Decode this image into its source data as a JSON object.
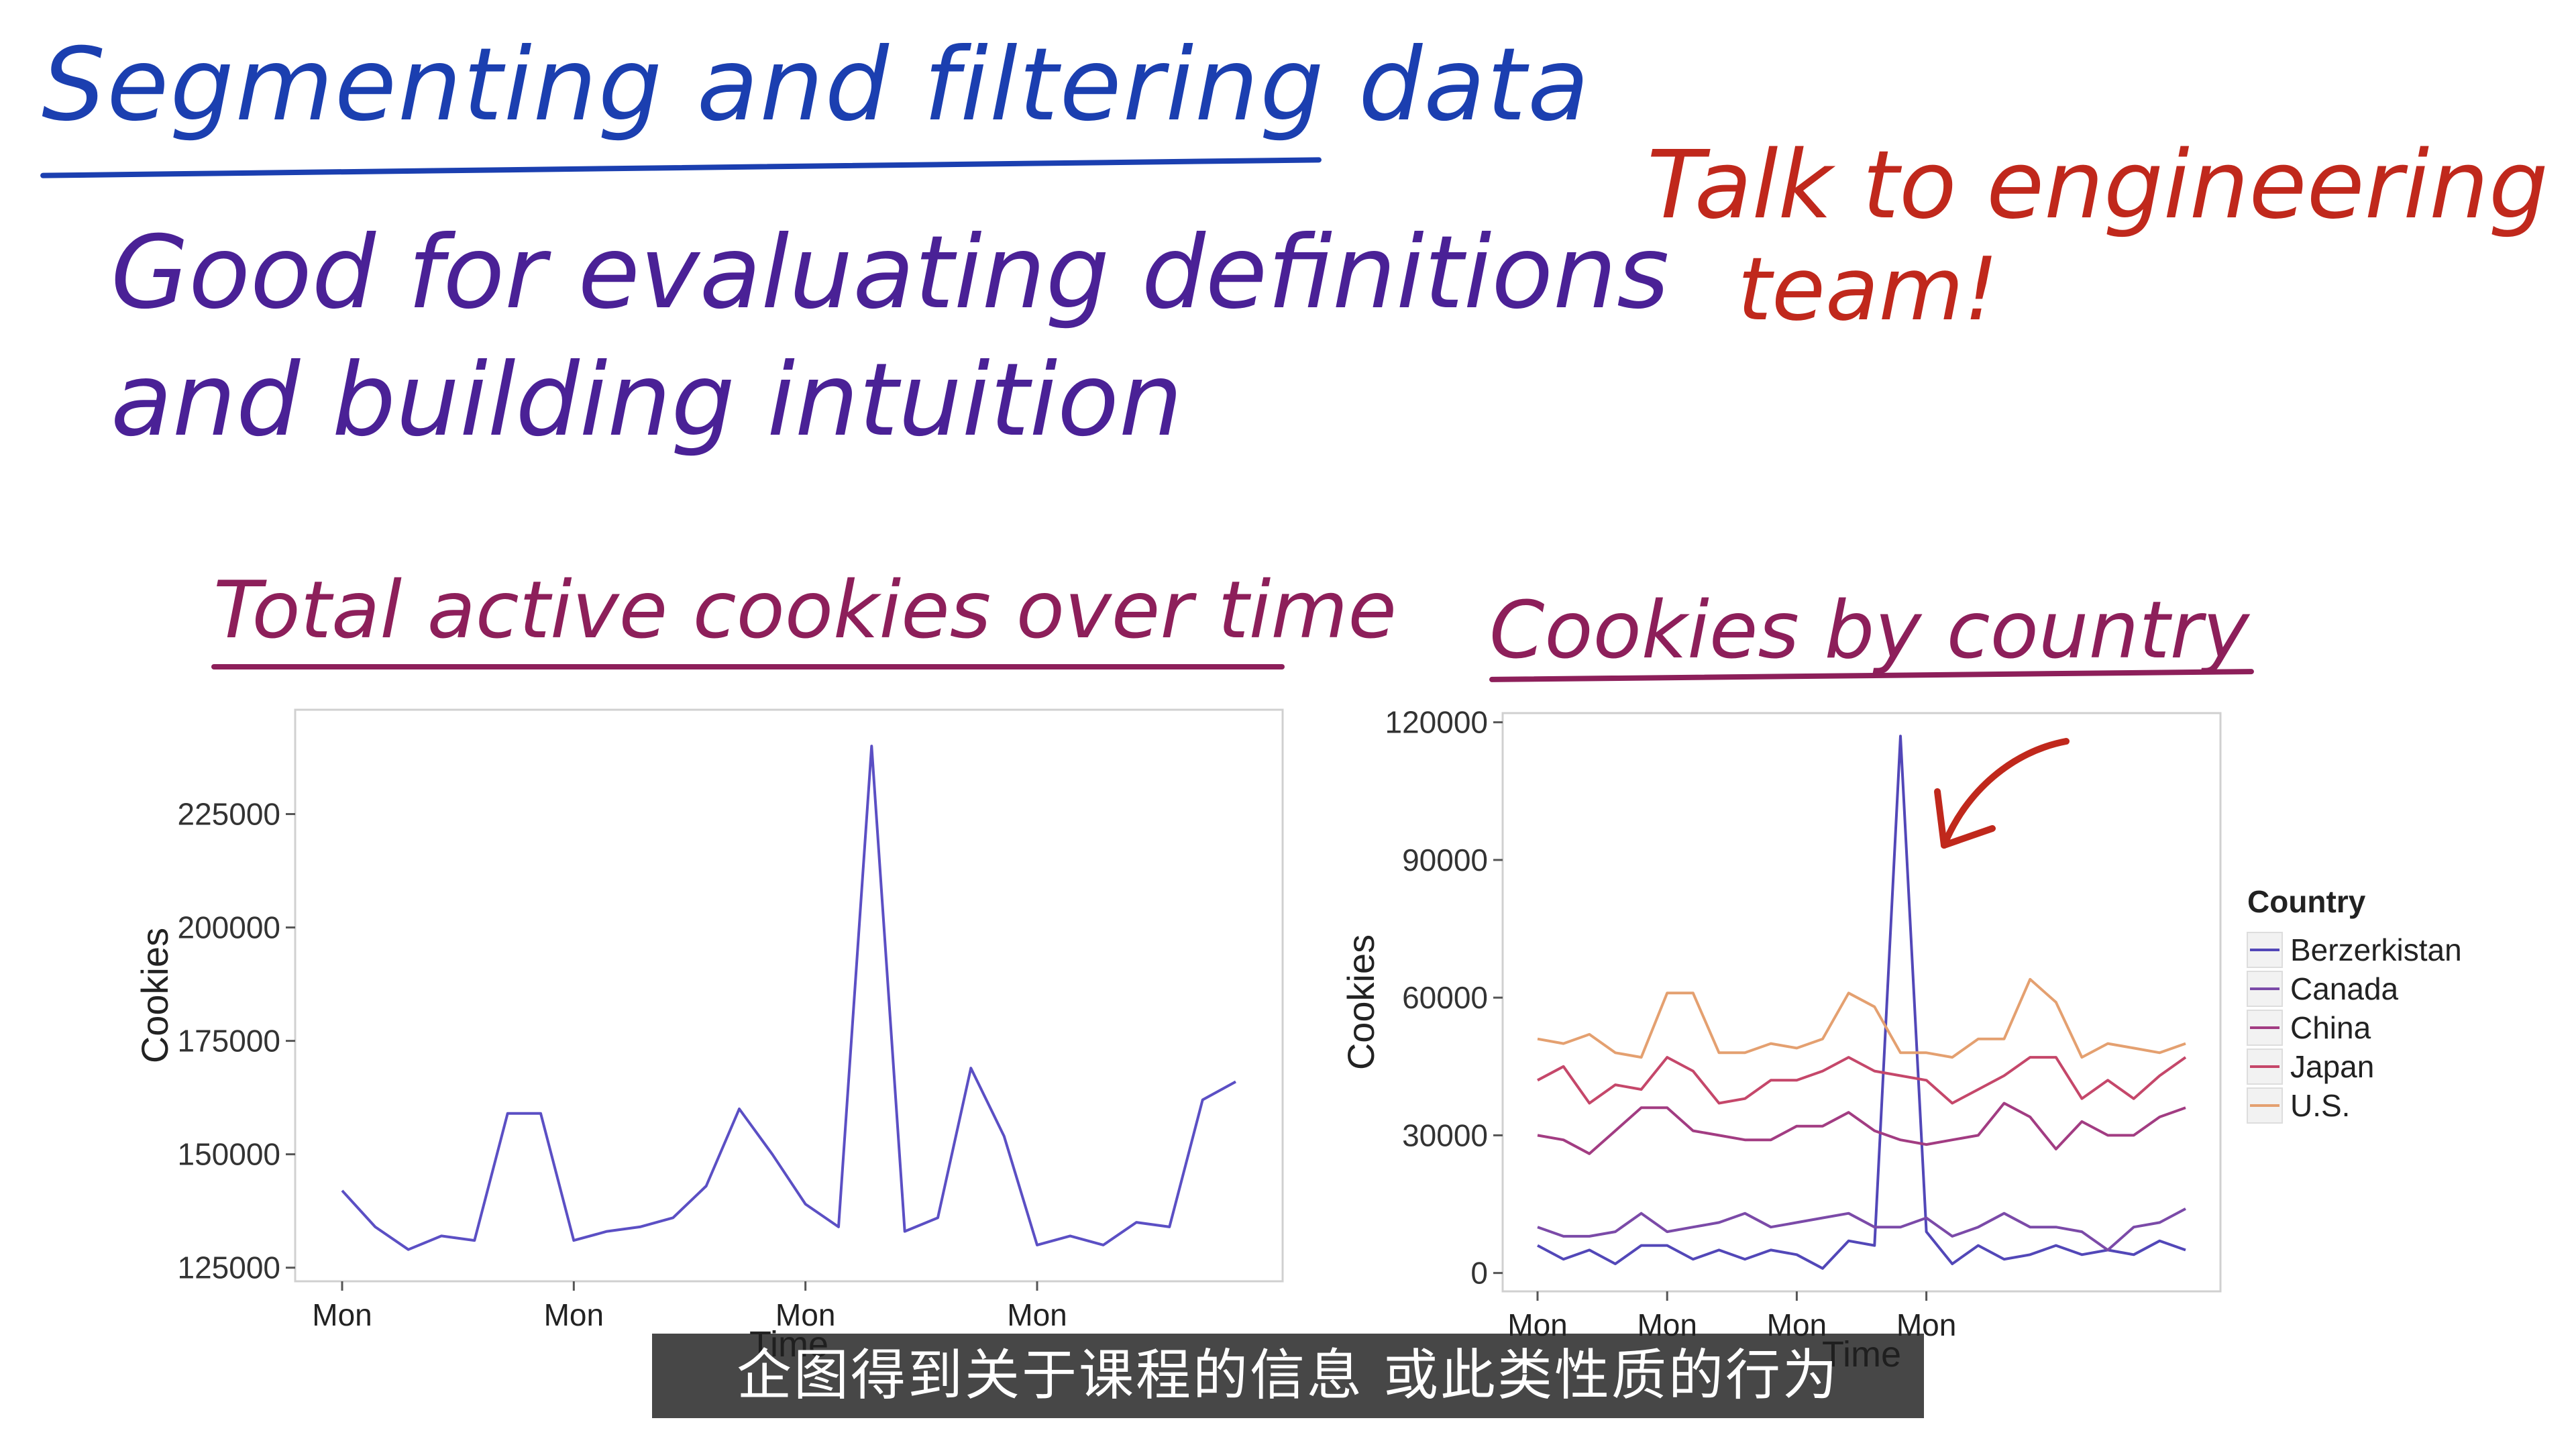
{
  "slide": {
    "title": "Segmenting and filtering data",
    "note_line1": "Good for evaluating definitions",
    "note_line2": "and building intuition",
    "callout_line1": "Talk to engineering",
    "callout_line2": "team!"
  },
  "subtitle": "企图得到关于课程的信息 或此类性质的行为",
  "colors": {
    "title": "#1b3fb0",
    "notes": "#4a2196",
    "callout": "#c0281c",
    "chart_titles": "#8d1f5a"
  },
  "chart_data": [
    {
      "type": "line",
      "title": "Total active cookies over time",
      "xlabel": "Time",
      "ylabel": "Cookies",
      "x_tick_labels": [
        "Mon",
        "Mon",
        "Mon",
        "Mon"
      ],
      "x_tick_index": [
        0,
        7,
        14,
        21
      ],
      "y_ticks": [
        "125000",
        "150000",
        "175000",
        "200000",
        "225000"
      ],
      "ylim": [
        122000,
        248000
      ],
      "grid": false,
      "series": [
        {
          "color": "#5b4fc4",
          "values": [
            142000,
            134000,
            129000,
            132000,
            131000,
            159000,
            159000,
            131000,
            133000,
            134000,
            136000,
            143000,
            160000,
            150000,
            139000,
            134000,
            240000,
            133000,
            136000,
            169000,
            154000,
            130000,
            132000,
            130000,
            135000,
            134000,
            162000,
            166000
          ]
        }
      ]
    },
    {
      "type": "line",
      "title": "Cookies by country",
      "xlabel": "Time",
      "ylabel": "Cookies",
      "x_tick_labels": [
        "Mon",
        "Mon",
        "Mon",
        "Mon"
      ],
      "x_tick_index": [
        0,
        5,
        10,
        15
      ],
      "y_ticks": [
        "0",
        "30000",
        "60000",
        "90000",
        "120000"
      ],
      "ylim": [
        -4000,
        122000
      ],
      "grid": false,
      "legend_title": "Country",
      "legend_position": "right",
      "series": [
        {
          "name": "Berzerkistan",
          "color": "#5247b8",
          "values": [
            6000,
            3000,
            5000,
            2000,
            6000,
            6000,
            3000,
            5000,
            3000,
            5000,
            4000,
            1000,
            7000,
            6000,
            117000,
            9000,
            2000,
            6000,
            3000,
            4000,
            6000,
            4000,
            5000,
            4000,
            7000,
            5000
          ]
        },
        {
          "name": "Canada",
          "color": "#7b4aa8",
          "values": [
            10000,
            8000,
            8000,
            9000,
            13000,
            9000,
            10000,
            11000,
            13000,
            10000,
            11000,
            12000,
            13000,
            10000,
            10000,
            12000,
            8000,
            10000,
            13000,
            10000,
            10000,
            9000,
            5000,
            10000,
            11000,
            14000
          ]
        },
        {
          "name": "China",
          "color": "#a23c82",
          "values": [
            30000,
            29000,
            26000,
            31000,
            36000,
            36000,
            31000,
            30000,
            29000,
            29000,
            32000,
            32000,
            35000,
            31000,
            29000,
            28000,
            29000,
            30000,
            37000,
            34000,
            27000,
            33000,
            30000,
            30000,
            34000,
            36000
          ]
        },
        {
          "name": "Japan",
          "color": "#c5476a",
          "values": [
            42000,
            45000,
            37000,
            41000,
            40000,
            47000,
            44000,
            37000,
            38000,
            42000,
            42000,
            44000,
            47000,
            44000,
            43000,
            42000,
            37000,
            40000,
            43000,
            47000,
            47000,
            38000,
            42000,
            38000,
            43000,
            47000
          ]
        },
        {
          "name": "U.S.",
          "color": "#e4a070",
          "values": [
            51000,
            50000,
            52000,
            48000,
            47000,
            61000,
            61000,
            48000,
            48000,
            50000,
            49000,
            51000,
            61000,
            58000,
            48000,
            48000,
            47000,
            51000,
            51000,
            64000,
            59000,
            47000,
            50000,
            49000,
            48000,
            50000
          ]
        }
      ]
    }
  ]
}
